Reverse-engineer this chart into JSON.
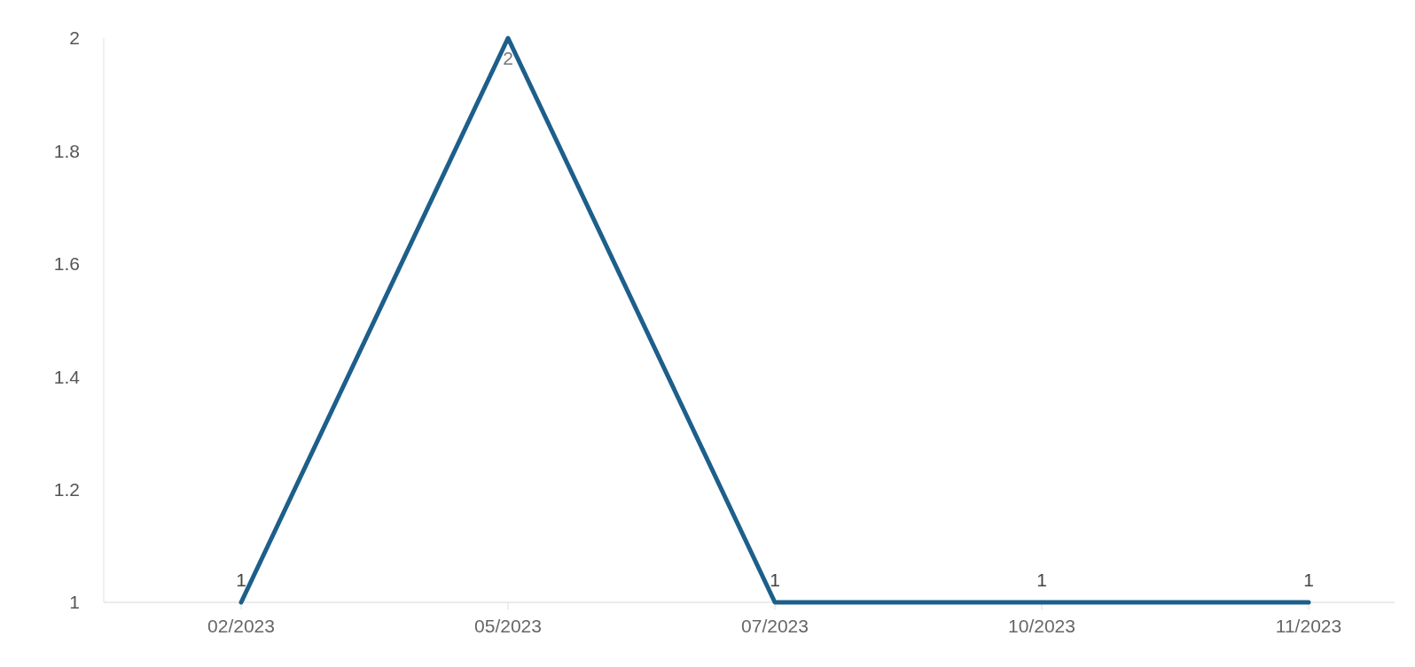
{
  "chart_data": {
    "type": "line",
    "categories": [
      "02/2023",
      "05/2023",
      "07/2023",
      "10/2023",
      "11/2023"
    ],
    "series": [
      {
        "color": "#1d5f8a",
        "values": [
          1,
          2,
          1,
          1,
          1
        ]
      }
    ],
    "ylim": [
      1,
      2
    ],
    "yticks": [
      1,
      1.2,
      1.4,
      1.6,
      1.8,
      2
    ],
    "data_labels": true,
    "marker": "none",
    "line_style": "solid"
  }
}
